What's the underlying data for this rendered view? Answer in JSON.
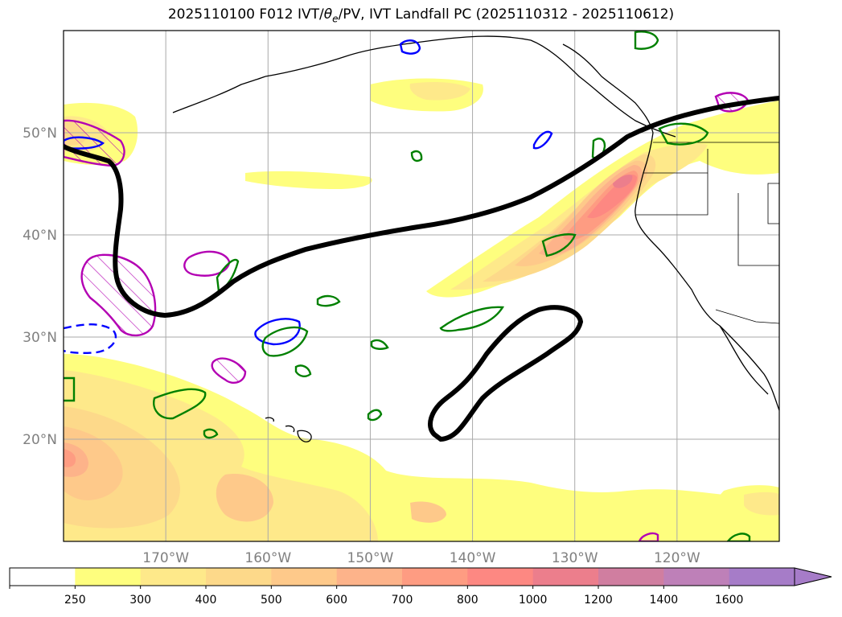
{
  "title": {
    "prefix": "2025110100 F012 IVT/",
    "theta": "θ",
    "sub": "e",
    "suffix": "/PV, IVT Landfall PC (2025110312 - 2025110612)"
  },
  "map": {
    "extent_lon": [
      -180,
      -110
    ],
    "extent_lat": [
      10,
      60
    ],
    "lat_ticks": [
      {
        "value": 20,
        "label": "20°N"
      },
      {
        "value": 30,
        "label": "30°N"
      },
      {
        "value": 40,
        "label": "40°N"
      },
      {
        "value": 50,
        "label": "50°N"
      }
    ],
    "lon_ticks": [
      {
        "value": -170,
        "label": "170°W"
      },
      {
        "value": -160,
        "label": "160°W"
      },
      {
        "value": -150,
        "label": "150°W"
      },
      {
        "value": -140,
        "label": "140°W"
      },
      {
        "value": -130,
        "label": "130°W"
      },
      {
        "value": -120,
        "label": "120°W"
      }
    ],
    "ivt_colors": [
      "#ffffff",
      "#fefe7e",
      "#fee98a",
      "#fdd98a",
      "#fec98a",
      "#fdb38a",
      "#fe9c82",
      "#fd8882",
      "#ec7e8c",
      "#d07ea0",
      "#be80b8",
      "#a67cc8"
    ],
    "contour_colors": {
      "theta_e": "#008000",
      "pv_positive": "#b300b3",
      "pv_negative": "#0000ff",
      "landfall": "#000000"
    }
  },
  "colorbar": {
    "levels": [
      "250",
      "300",
      "400",
      "500",
      "600",
      "700",
      "800",
      "1000",
      "1200",
      "1400",
      "1600"
    ],
    "colors": [
      "#ffffff",
      "#fefe7e",
      "#fee98a",
      "#fdd98a",
      "#fec98a",
      "#fdb38a",
      "#fe9c82",
      "#fd8882",
      "#ec7e8c",
      "#d07ea0",
      "#be80b8",
      "#a67cc8"
    ],
    "extend": "max"
  }
}
